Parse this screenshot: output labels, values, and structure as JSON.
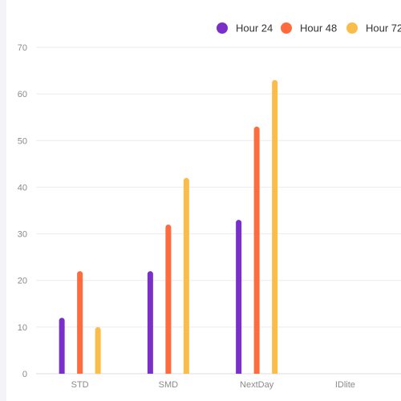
{
  "chart_data": {
    "type": "bar",
    "categories": [
      "STD",
      "SMD",
      "NextDay",
      "IDlite"
    ],
    "series": [
      {
        "name": "Hour 24",
        "values": [
          12,
          22,
          33,
          null
        ],
        "color": "#7b2fc9"
      },
      {
        "name": "Hour 48",
        "values": [
          22,
          32,
          53,
          null
        ],
        "color": "#ff6b3d"
      },
      {
        "name": "Hour 72",
        "values": [
          10,
          42,
          63,
          null
        ],
        "color": "#fbbd4a"
      }
    ],
    "yticks": [
      0,
      10,
      20,
      30,
      40,
      50,
      60,
      70
    ],
    "ylim": [
      0,
      70
    ],
    "grid": true,
    "legend_position": "top-right",
    "axis_color": "#dddddd",
    "grid_color": "#ebebeb"
  }
}
